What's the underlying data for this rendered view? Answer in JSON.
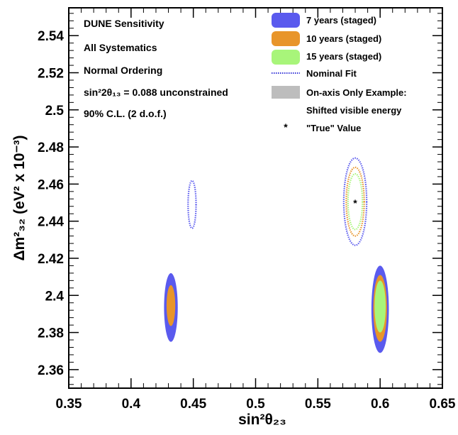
{
  "chart_data": {
    "type": "scatter",
    "xlabel": "sin²θ₂₃",
    "ylabel": "Δm²₃₂ (eV² x 10⁻³)",
    "xlim": [
      0.35,
      0.65
    ],
    "ylim": [
      2.35,
      2.555
    ],
    "x_ticks": [
      "0.35",
      "0.4",
      "0.45",
      "0.5",
      "0.55",
      "0.6",
      "0.65"
    ],
    "y_ticks": [
      "2.36",
      "2.38",
      "2.4",
      "2.42",
      "2.44",
      "2.46",
      "2.48",
      "2.5",
      "2.52",
      "2.54"
    ],
    "x_tick_values": [
      0.35,
      0.4,
      0.45,
      0.5,
      0.55,
      0.6,
      0.65
    ],
    "y_tick_values": [
      2.36,
      2.38,
      2.4,
      2.42,
      2.44,
      2.46,
      2.48,
      2.5,
      2.52,
      2.54
    ],
    "annotations": [
      "DUNE Sensitivity",
      "All Systematics",
      "Normal Ordering",
      "sin²2θ₁₃ = 0.088 unconstrained",
      "90% C.L. (2 d.o.f.)"
    ],
    "legend_position": "top-right",
    "legend": [
      {
        "label": "7 years (staged)",
        "color": "#5a5aee"
      },
      {
        "label": "10 years (staged)",
        "color": "#e8952a"
      },
      {
        "label": "15 years (staged)",
        "color": "#a8f57a"
      },
      {
        "label": "Nominal Fit",
        "style": "dotted"
      },
      {
        "label": "On-axis Only Example:",
        "color": "#bdbdbd"
      },
      {
        "label": "Shifted visible energy"
      },
      {
        "label": "\"True\" Value",
        "marker": "star"
      }
    ],
    "true_value": {
      "x": 0.58,
      "y": 2.45
    },
    "series": [
      {
        "name": "7 years (staged)",
        "style": "filled",
        "color": "#5a5aee",
        "regions": [
          {
            "cx": 0.432,
            "cy": 2.3935,
            "rx": 0.0055,
            "ry": 0.0185
          },
          {
            "cx": 0.6,
            "cy": 2.3925,
            "rx": 0.007,
            "ry": 0.0235
          }
        ]
      },
      {
        "name": "10 years (staged)",
        "style": "filled",
        "color": "#e8952a",
        "regions": [
          {
            "cx": 0.432,
            "cy": 2.3945,
            "rx": 0.0035,
            "ry": 0.011
          },
          {
            "cx": 0.6,
            "cy": 2.393,
            "rx": 0.0055,
            "ry": 0.018
          }
        ]
      },
      {
        "name": "15 years (staged)",
        "style": "filled",
        "color": "#a8f57a",
        "regions": [
          {
            "cx": 0.6,
            "cy": 2.394,
            "rx": 0.0045,
            "ry": 0.014
          }
        ]
      },
      {
        "name": "7 years (staged)",
        "style": "dotted",
        "color": "#5a5aee",
        "regions": [
          {
            "cx": 0.449,
            "cy": 2.449,
            "rx": 0.0032,
            "ry": 0.0128
          },
          {
            "cx": 0.58,
            "cy": 2.4505,
            "rx": 0.0092,
            "ry": 0.0235
          }
        ]
      },
      {
        "name": "10 years (staged)",
        "style": "dotted",
        "color": "#e8952a",
        "regions": [
          {
            "cx": 0.58,
            "cy": 2.4505,
            "rx": 0.0072,
            "ry": 0.0185
          }
        ]
      },
      {
        "name": "15 years (staged)",
        "style": "dotted",
        "color": "#a8f57a",
        "regions": [
          {
            "cx": 0.58,
            "cy": 2.4505,
            "rx": 0.0058,
            "ry": 0.015
          }
        ]
      }
    ]
  }
}
